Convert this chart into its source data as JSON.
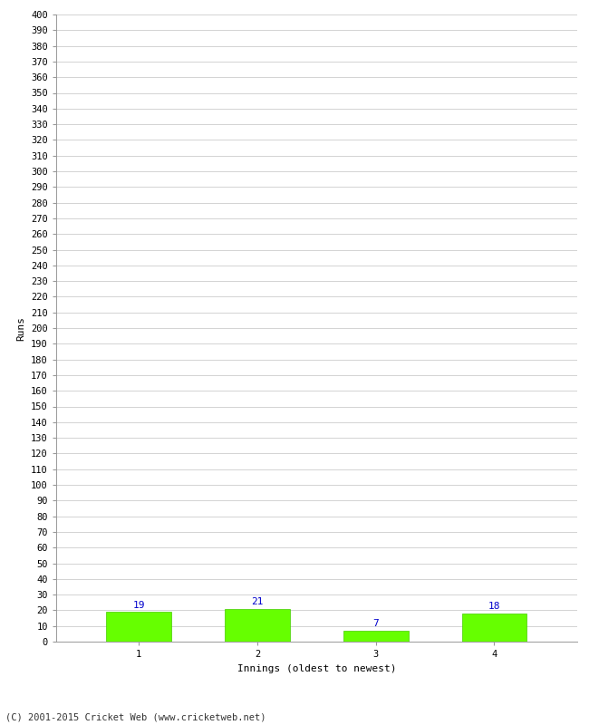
{
  "categories": [
    1,
    2,
    3,
    4
  ],
  "values": [
    19,
    21,
    7,
    18
  ],
  "bar_color": "#66ff00",
  "bar_edge_color": "#44cc00",
  "value_label_color": "#0000cc",
  "xlabel": "Innings (oldest to newest)",
  "ylabel": "Runs",
  "ylim": [
    0,
    400
  ],
  "footer": "(C) 2001-2015 Cricket Web (www.cricketweb.net)",
  "grid_color": "#cccccc",
  "background_color": "#ffffff",
  "value_fontsize": 8,
  "label_fontsize": 8,
  "tick_fontsize": 7.5,
  "footer_fontsize": 7.5
}
